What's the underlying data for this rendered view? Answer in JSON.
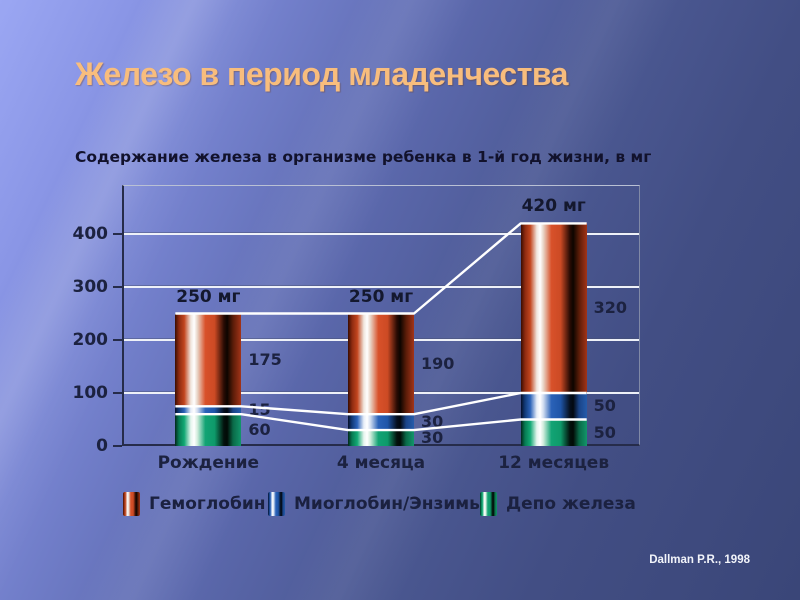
{
  "slide": {
    "title": "Железо в период младенчества",
    "citation": "Dallman P.R., 1998"
  },
  "chart_data": {
    "type": "bar",
    "stacked": true,
    "title": "Содержание железа в организме ребенка в 1-й год жизни, в мг",
    "categories": [
      "Рождение",
      "4 месяца",
      "12 месяцев"
    ],
    "series": [
      {
        "name": "Гемоглобин",
        "color": "#cc4a24",
        "values": [
          175,
          190,
          320
        ]
      },
      {
        "name": "Миоглобин/Энзимы",
        "color": "#1f55a8",
        "values": [
          15,
          30,
          50
        ]
      },
      {
        "name": "Депо железа",
        "color": "#0e9a6a",
        "values": [
          60,
          30,
          50
        ]
      }
    ],
    "stack_order_bottom_to_top": [
      "Депо железа",
      "Миоглобин/Энзимы",
      "Гемоглобин"
    ],
    "totals": [
      "250 мг",
      "250 мг",
      "420 мг"
    ],
    "y_ticks": [
      0,
      100,
      200,
      300,
      400
    ],
    "ylim": [
      0,
      490
    ],
    "xlabel": "",
    "ylabel": "",
    "grid": true,
    "legend_position": "bottom",
    "overlay_lines": {
      "color": "#ffffff",
      "description": "white lines connect cumulative stack boundaries (depot top, enzymes top, bar totals) across the three bars"
    }
  }
}
